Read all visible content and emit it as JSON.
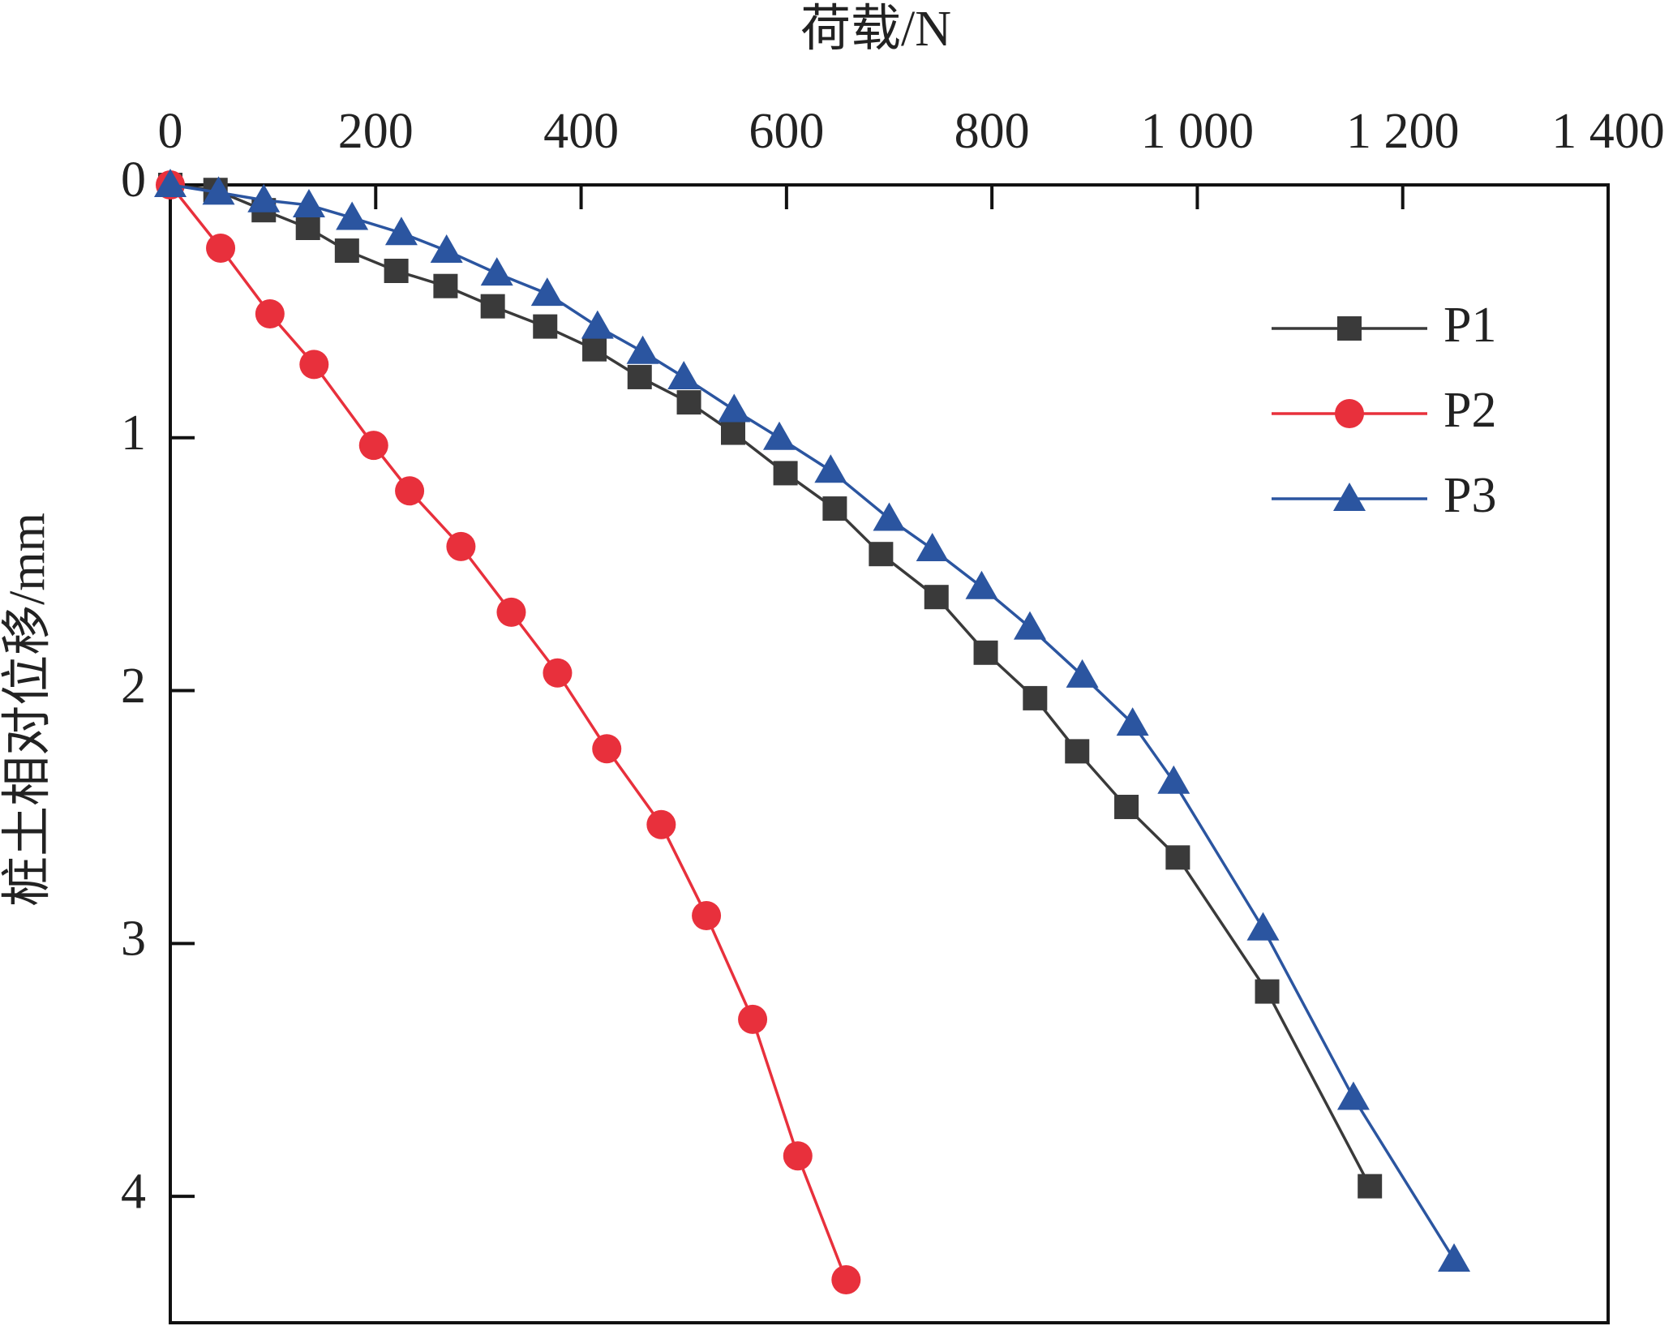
{
  "chart_data": {
    "type": "line",
    "x_label": "荷载/N",
    "y_label": "桩土相对位移/mm",
    "xlim": [
      0,
      1400
    ],
    "xticks": [
      0,
      200,
      400,
      600,
      800,
      {
        "value": 1000,
        "label": "1 000"
      },
      {
        "value": 1200,
        "label": "1 200"
      },
      {
        "value": 1400,
        "label": "1 400"
      }
    ],
    "ylim": [
      0,
      4.5
    ],
    "yticks": [
      0,
      1,
      2,
      3,
      4
    ],
    "y_inverted": true,
    "x_axis_position": "top",
    "legend": "upper right",
    "series": [
      {
        "name": "P1",
        "color": "#3a3a3a",
        "marker": "square",
        "x": [
          0,
          44,
          91,
          134,
          172,
          220,
          268,
          314,
          365,
          413,
          457,
          505,
          548,
          599,
          647,
          692,
          746,
          794,
          842,
          883,
          931,
          981,
          1068,
          1168
        ],
        "values": [
          0,
          0.02,
          0.1,
          0.17,
          0.26,
          0.34,
          0.4,
          0.48,
          0.56,
          0.65,
          0.76,
          0.86,
          0.98,
          1.14,
          1.28,
          1.46,
          1.63,
          1.85,
          2.03,
          2.24,
          2.46,
          2.66,
          3.19,
          3.96
        ]
      },
      {
        "name": "P2",
        "color": "#e8303c",
        "marker": "circle",
        "x": [
          0,
          49,
          97,
          140,
          198,
          233,
          283,
          332,
          377,
          425,
          478,
          522,
          567,
          611,
          658
        ],
        "values": [
          0,
          0.25,
          0.51,
          0.71,
          1.03,
          1.21,
          1.43,
          1.69,
          1.93,
          2.23,
          2.53,
          2.89,
          3.3,
          3.84,
          4.33
        ]
      },
      {
        "name": "P3",
        "color": "#2b55a0",
        "marker": "triangle",
        "x": [
          0,
          47,
          91,
          135,
          177,
          225,
          269,
          318,
          367,
          416,
          460,
          500,
          549,
          593,
          643,
          700,
          742,
          790,
          837,
          888,
          937,
          977,
          1064,
          1152,
          1250
        ],
        "values": [
          0,
          0.03,
          0.06,
          0.08,
          0.13,
          0.19,
          0.26,
          0.35,
          0.43,
          0.56,
          0.66,
          0.76,
          0.89,
          1.0,
          1.13,
          1.32,
          1.44,
          1.59,
          1.75,
          1.94,
          2.13,
          2.36,
          2.94,
          3.61,
          4.25
        ]
      }
    ]
  }
}
